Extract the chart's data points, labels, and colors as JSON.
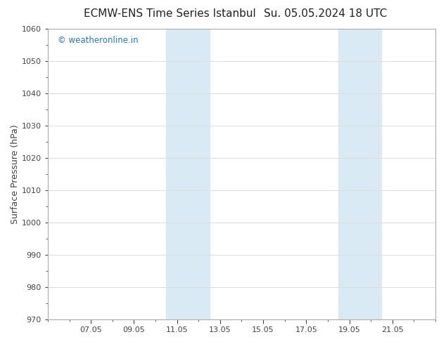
{
  "title_left": "ECMW-ENS Time Series Istanbul",
  "title_right": "Su. 05.05.2024 18 UTC",
  "ylabel": "Surface Pressure (hPa)",
  "ylim": [
    970,
    1060
  ],
  "yticks": [
    970,
    980,
    990,
    1000,
    1010,
    1020,
    1030,
    1040,
    1050,
    1060
  ],
  "xtick_labels": [
    "07.05",
    "09.05",
    "11.05",
    "13.05",
    "15.05",
    "17.05",
    "19.05",
    "21.05"
  ],
  "xtick_positions": [
    2,
    4,
    6,
    8,
    10,
    12,
    14,
    16
  ],
  "xlim": [
    0,
    18
  ],
  "shaded_bands": [
    {
      "x_start": 5.5,
      "x_end": 7.5
    },
    {
      "x_start": 13.5,
      "x_end": 15.5
    }
  ],
  "shaded_color": "#daeaf5",
  "bg_color": "#ffffff",
  "plot_bg_color": "#ffffff",
  "watermark_text": "© weatheronline.in",
  "watermark_color": "#2277cc",
  "title_color": "#222222",
  "axis_color": "#aaaaaa",
  "grid_color": "#dddddd",
  "tick_color": "#444444",
  "title_fontsize": 11,
  "ylabel_fontsize": 9,
  "tick_fontsize": 8
}
